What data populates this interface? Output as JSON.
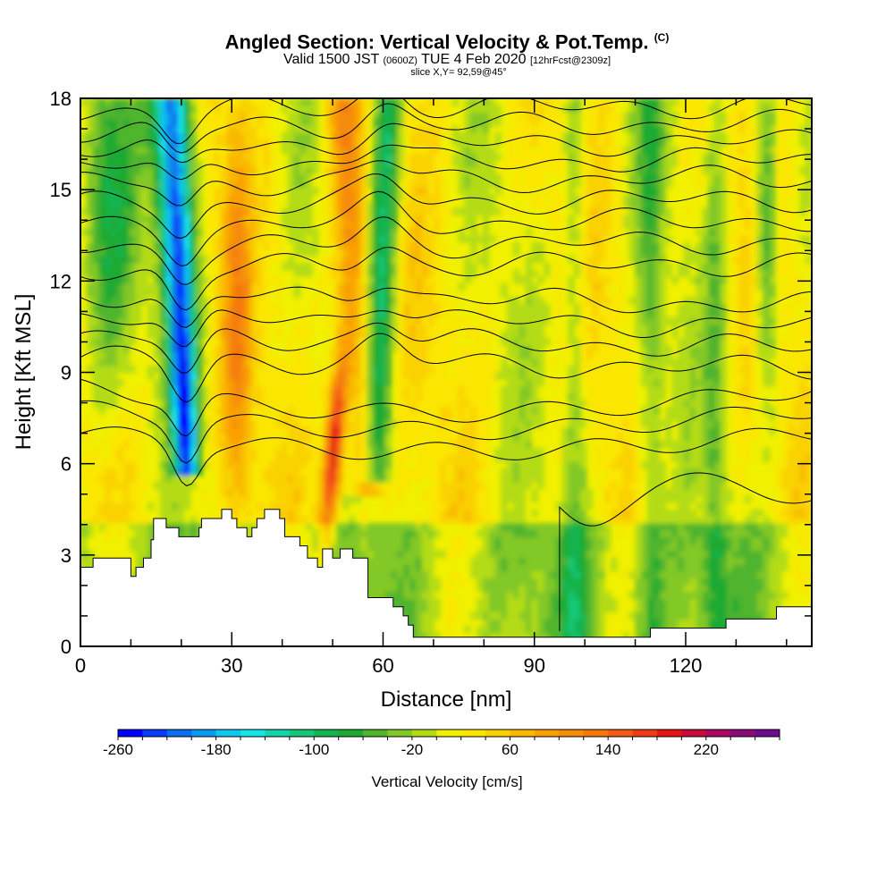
{
  "title": {
    "main": "Angled Section: Vertical Velocity & Pot.Temp.",
    "main_tag": "(C)",
    "valid_prefix": "Valid 1500 JST",
    "valid_utc": "(0600Z)",
    "valid_date": "TUE 4 Feb 2020",
    "forecast": "[12hrFcst@2309z]",
    "slice": "slice X,Y= 92,59@45°"
  },
  "chart_data": {
    "type": "heatmap",
    "xlabel": "Distance [nm]",
    "ylabel": "Height [Kft MSL]",
    "xlim": [
      0,
      145
    ],
    "ylim": [
      0,
      18
    ],
    "x_ticks": [
      "0",
      "30",
      "60",
      "90",
      "120"
    ],
    "x_tick_values": [
      0,
      30,
      60,
      90,
      120
    ],
    "y_ticks": [
      "0",
      "3",
      "6",
      "9",
      "12",
      "15",
      "18"
    ],
    "y_tick_values": [
      0,
      3,
      6,
      9,
      12,
      15,
      18
    ],
    "colorbar": {
      "title": "Vertical Velocity [cm/s]",
      "range": [
        -260,
        260
      ],
      "step": 20,
      "labels": [
        "-260",
        "-180",
        "-100",
        "-20",
        "60",
        "140",
        "220"
      ],
      "label_values": [
        -260,
        -180,
        -100,
        -20,
        60,
        140,
        220
      ],
      "colors": [
        "#0000ff",
        "#0a3cf8",
        "#0a6ef0",
        "#0a9bf0",
        "#0fc8f0",
        "#14e6e6",
        "#14d2aa",
        "#14c878",
        "#14b450",
        "#1eaa32",
        "#50b42d",
        "#82c828",
        "#b4dc14",
        "#f0f000",
        "#fae600",
        "#fad200",
        "#fab900",
        "#faa000",
        "#f58c0a",
        "#f5780a",
        "#f55a14",
        "#f03c14",
        "#e61414",
        "#c80a3c",
        "#aa0a64",
        "#8c0a78",
        "#6e0a8c"
      ]
    },
    "features": [
      {
        "name": "downdraft",
        "x": 21,
        "velocity": -200
      },
      {
        "name": "updraft",
        "x": 50,
        "velocity": 180
      },
      {
        "name": "downdraft",
        "x": 60,
        "velocity": -110
      },
      {
        "name": "updraft",
        "x": 56,
        "velocity": 60
      },
      {
        "name": "downdraft",
        "x": 136,
        "velocity": -90
      }
    ],
    "terrain_kft": [
      [
        0,
        2.6
      ],
      [
        2.5,
        2.6
      ],
      [
        2.5,
        2.9
      ],
      [
        10,
        2.9
      ],
      [
        10,
        2.3
      ],
      [
        11,
        2.3
      ],
      [
        11,
        2.6
      ],
      [
        12.5,
        2.6
      ],
      [
        12.5,
        2.9
      ],
      [
        14,
        2.9
      ],
      [
        14,
        3.5
      ],
      [
        14.5,
        3.5
      ],
      [
        14.5,
        4.2
      ],
      [
        17,
        4.2
      ],
      [
        17,
        3.9
      ],
      [
        19.5,
        3.9
      ],
      [
        19.5,
        3.6
      ],
      [
        23.5,
        3.6
      ],
      [
        23.5,
        3.9
      ],
      [
        24,
        3.9
      ],
      [
        24,
        4.2
      ],
      [
        28,
        4.2
      ],
      [
        28,
        4.5
      ],
      [
        30,
        4.5
      ],
      [
        30,
        4.2
      ],
      [
        31,
        4.2
      ],
      [
        31,
        3.9
      ],
      [
        33,
        3.9
      ],
      [
        33,
        3.6
      ],
      [
        34,
        3.6
      ],
      [
        34,
        3.9
      ],
      [
        35,
        3.9
      ],
      [
        35,
        4.2
      ],
      [
        36.5,
        4.2
      ],
      [
        36.5,
        4.5
      ],
      [
        39.5,
        4.5
      ],
      [
        39.5,
        4.2
      ],
      [
        40.5,
        4.2
      ],
      [
        40.5,
        3.6
      ],
      [
        43.5,
        3.6
      ],
      [
        43.5,
        3.3
      ],
      [
        45,
        3.3
      ],
      [
        45,
        2.9
      ],
      [
        47,
        2.9
      ],
      [
        47,
        2.6
      ],
      [
        48,
        2.6
      ],
      [
        48,
        3.2
      ],
      [
        50,
        3.2
      ],
      [
        50,
        2.9
      ],
      [
        51.5,
        2.9
      ],
      [
        51.5,
        3.2
      ],
      [
        54,
        3.2
      ],
      [
        54,
        2.9
      ],
      [
        57,
        2.9
      ],
      [
        57,
        1.6
      ],
      [
        62,
        1.6
      ],
      [
        62,
        1.3
      ],
      [
        64,
        1.3
      ],
      [
        64,
        1.0
      ],
      [
        65,
        1.0
      ],
      [
        65,
        0.7
      ],
      [
        66,
        0.7
      ],
      [
        66,
        0.3
      ],
      [
        113,
        0.3
      ],
      [
        113,
        0.6
      ],
      [
        128,
        0.6
      ],
      [
        128,
        0.9
      ],
      [
        138,
        0.9
      ],
      [
        138,
        1.3
      ],
      [
        145,
        1.3
      ]
    ],
    "theta_contours_kft_at_x0": [
      9.5,
      10.2,
      10.9,
      11.6,
      12.4,
      13.1,
      13.8,
      14.5,
      15.2,
      15.8,
      16.4,
      17.0,
      17.6
    ]
  }
}
